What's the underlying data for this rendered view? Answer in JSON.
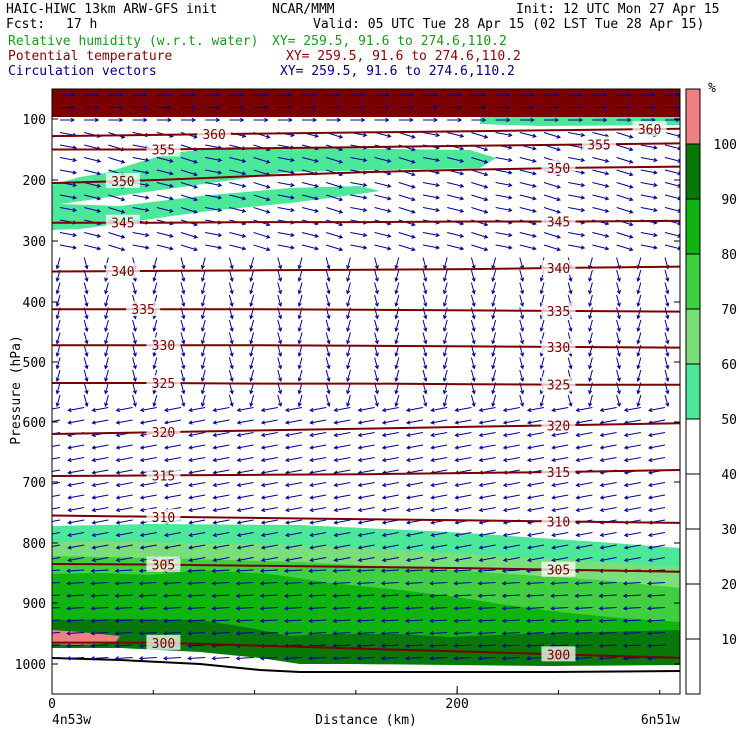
{
  "header": {
    "model": "HAIC-HIWC 13km ARW-GFS init",
    "org": "NCAR/MMM",
    "init": "Init: 12 UTC Mon 27 Apr 15",
    "fcst_label": "Fcst:",
    "fcst_value": "17 h",
    "valid": "Valid: 05 UTC Tue 28 Apr 15 (02 LST Tue 28 Apr 15)",
    "field1": "Relative humidity (w.r.t. water)",
    "field2": "Potential temperature",
    "field3": "Circulation vectors",
    "xy1": "XY= 259.5, 91.6 to 274.6,110.2",
    "xy2": "XY= 259.5, 91.6 to 274.6,110.2",
    "xy3": "XY= 259.5, 91.6 to 274.6,110.2"
  },
  "colors": {
    "rh_text": "#1a9a1a",
    "theta_text": "#8b0000",
    "vector_text": "#000080",
    "theta_line": "#7a0000",
    "vector": "#000099"
  },
  "chart_data": {
    "type": "cross-section",
    "xlabel": "Distance (km)",
    "ylabel": "Pressure (hPa)",
    "xlim": [
      0,
      310
    ],
    "ylim": [
      1050,
      50
    ],
    "y_log": true,
    "x_ticks": [
      0,
      200
    ],
    "y_ticks": [
      100,
      200,
      300,
      400,
      500,
      600,
      700,
      800,
      900,
      1000
    ],
    "x_end_labels": [
      "4n53w",
      "6n51w"
    ],
    "colorbar": {
      "unit": "%",
      "ticks": [
        10,
        20,
        30,
        40,
        50,
        60,
        70,
        80,
        90,
        100
      ],
      "bins": [
        {
          "from": 0,
          "to": 50,
          "color": "#ffffff"
        },
        {
          "from": 50,
          "to": 60,
          "color": "#4ce89a"
        },
        {
          "from": 60,
          "to": 70,
          "color": "#7ade7a"
        },
        {
          "from": 70,
          "to": 80,
          "color": "#3fcf3f"
        },
        {
          "from": 80,
          "to": 90,
          "color": "#0fb40f"
        },
        {
          "from": 90,
          "to": 100,
          "color": "#087808"
        },
        {
          "from": 100,
          "to": 110,
          "color": "#f08080"
        }
      ]
    },
    "theta_contours": [
      {
        "level": "300",
        "labels": [
          [
            55,
            300
          ],
          [
            250,
            300
          ]
        ],
        "p": [
          965,
          965,
          970,
          975,
          980,
          985,
          990
        ]
      },
      {
        "level": "305",
        "labels": [
          [
            55,
            305
          ],
          [
            250,
            305
          ]
        ],
        "p": [
          835,
          836,
          838,
          840,
          842,
          845,
          848
        ]
      },
      {
        "level": "310",
        "labels": [
          [
            55,
            310
          ],
          [
            250,
            310
          ]
        ],
        "p": [
          755,
          757,
          759,
          761,
          763,
          765,
          767
        ]
      },
      {
        "level": "315",
        "labels": [
          [
            55,
            315
          ],
          [
            250,
            315
          ]
        ],
        "p": [
          690,
          689,
          688,
          687,
          685,
          683,
          680
        ]
      },
      {
        "level": "320",
        "labels": [
          [
            55,
            320
          ],
          [
            250,
            320
          ]
        ],
        "p": [
          620,
          617,
          614,
          611,
          608,
          605,
          602
        ]
      },
      {
        "level": "325",
        "labels": [
          [
            55,
            325
          ],
          [
            250,
            325
          ]
        ],
        "p": [
          535,
          535,
          536,
          536,
          537,
          538,
          538
        ]
      },
      {
        "level": "330",
        "labels": [
          [
            55,
            330
          ],
          [
            250,
            330
          ]
        ],
        "p": [
          472,
          472,
          472,
          473,
          474,
          475,
          476
        ]
      },
      {
        "level": "335",
        "labels": [
          [
            45,
            335
          ],
          [
            250,
            335
          ]
        ],
        "p": [
          412,
          412,
          412,
          413,
          414,
          415,
          416
        ]
      },
      {
        "level": "340",
        "labels": [
          [
            35,
            340
          ],
          [
            250,
            340
          ]
        ],
        "p": [
          350,
          349,
          348,
          347,
          346,
          344,
          342
        ]
      },
      {
        "level": "345",
        "labels": [
          [
            35,
            345
          ],
          [
            250,
            345
          ]
        ],
        "p": [
          270,
          270,
          269,
          269,
          268,
          268,
          267
        ]
      },
      {
        "level": "350",
        "labels": [
          [
            35,
            350
          ],
          [
            250,
            350
          ]
        ],
        "p": [
          205,
          200,
          193,
          187,
          183,
          180,
          178
        ]
      },
      {
        "level": "355",
        "labels": [
          [
            55,
            355
          ],
          [
            270,
            355
          ]
        ],
        "p": [
          150,
          150,
          148,
          146,
          144,
          142,
          140
        ]
      },
      {
        "level": "360",
        "labels": [
          [
            80,
            360
          ],
          [
            295,
            360
          ]
        ],
        "p": [
          128,
          126,
          124,
          122,
          120,
          118,
          116
        ]
      }
    ]
  }
}
